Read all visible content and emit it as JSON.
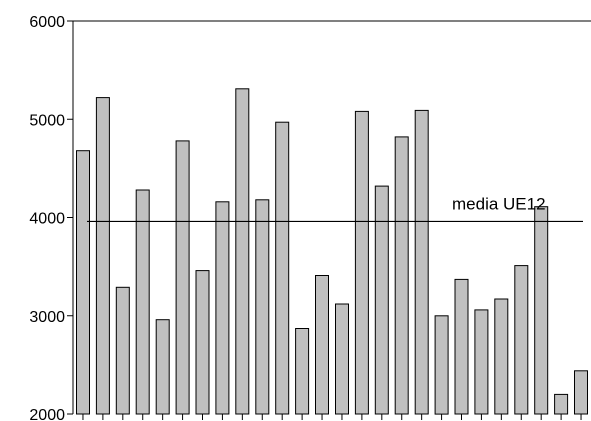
{
  "chart_data": {
    "type": "bar",
    "title": "",
    "xlabel": "",
    "ylabel": "",
    "ylim": [
      2000,
      6000
    ],
    "yticks": [
      2000,
      3000,
      4000,
      5000,
      6000
    ],
    "grid": false,
    "values": [
      4680,
      5220,
      3290,
      4280,
      2960,
      4780,
      3460,
      4160,
      5310,
      4180,
      4970,
      2870,
      3410,
      3120,
      5080,
      4320,
      4820,
      5090,
      3000,
      3370,
      3060,
      3170,
      3510,
      4110,
      2200,
      2440
    ],
    "reference_line": {
      "label": "media UE12",
      "value": 3960
    },
    "colors": {
      "bar_fill": "#c0c0c0",
      "bar_stroke": "#000000",
      "axis": "#000000"
    }
  }
}
